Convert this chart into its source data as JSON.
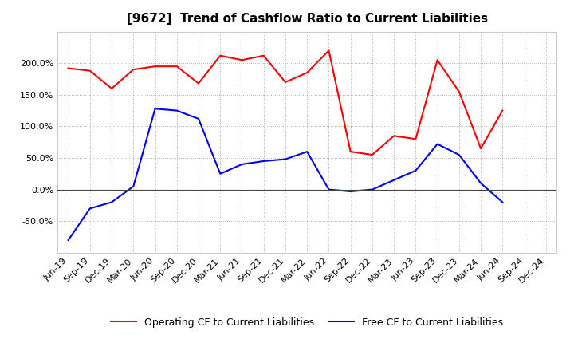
{
  "title": "[9672]  Trend of Cashflow Ratio to Current Liabilities",
  "x_labels": [
    "Jun-19",
    "Sep-19",
    "Dec-19",
    "Mar-20",
    "Jun-20",
    "Sep-20",
    "Dec-20",
    "Mar-21",
    "Jun-21",
    "Sep-21",
    "Dec-21",
    "Mar-22",
    "Jun-22",
    "Sep-22",
    "Dec-22",
    "Mar-23",
    "Jun-23",
    "Sep-23",
    "Dec-23",
    "Mar-24",
    "Jun-24",
    "Sep-24",
    "Dec-24"
  ],
  "operating_cf": [
    192,
    188,
    160,
    190,
    195,
    195,
    168,
    212,
    205,
    212,
    170,
    185,
    220,
    60,
    55,
    85,
    80,
    205,
    155,
    65,
    125,
    null,
    null
  ],
  "free_cf": [
    -80,
    -30,
    -20,
    5,
    128,
    125,
    112,
    25,
    40,
    45,
    48,
    60,
    0,
    -3,
    0,
    15,
    30,
    72,
    55,
    10,
    -20,
    null,
    null
  ],
  "operating_color": "#ff0000",
  "free_color": "#0000ff",
  "bg_color": "#ffffff",
  "plot_bg_color": "#ffffff",
  "grid_color": "#aaaaaa",
  "ylim": [
    -100,
    250
  ],
  "yticks": [
    -50.0,
    0.0,
    50.0,
    100.0,
    150.0,
    200.0
  ],
  "legend_op": "Operating CF to Current Liabilities",
  "legend_free": "Free CF to Current Liabilities",
  "title_fontsize": 11,
  "axis_fontsize": 8,
  "legend_fontsize": 9
}
